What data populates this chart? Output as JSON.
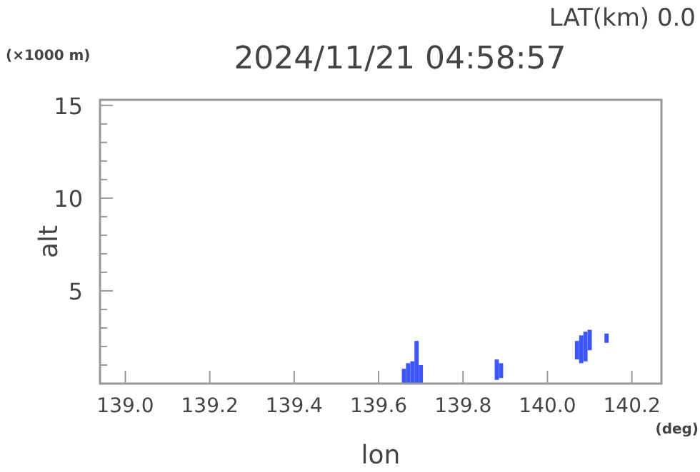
{
  "chart_data": {
    "type": "bar",
    "title": "2024/11/21 04:58:57",
    "subtitle": "LAT(km) 0.0",
    "xlabel": "lon",
    "ylabel": "alt",
    "annotations": [
      "(×1000 m)",
      "(deg)"
    ],
    "x": [
      139.66,
      139.67,
      139.68,
      139.69,
      139.7,
      139.88,
      139.89,
      140.07,
      140.08,
      140.09,
      140.1,
      140.14
    ],
    "base": [
      0,
      0,
      0,
      0,
      0,
      0.2,
      0.3,
      1.3,
      1.1,
      1.2,
      1.8,
      2.2
    ],
    "values": [
      0.8,
      1.1,
      1.2,
      2.3,
      1.0,
      1.1,
      0.8,
      1.0,
      1.5,
      1.6,
      1.1,
      0.5
    ],
    "color": "#3d55ff",
    "xlim": [
      138.94,
      140.27
    ],
    "xticks": [
      {
        "value": 139,
        "label": "139.0"
      },
      {
        "value": 139.2,
        "label": "139.2"
      },
      {
        "value": 139.4,
        "label": "139.4"
      },
      {
        "value": 139.6,
        "label": "139.6"
      },
      {
        "value": 139.8,
        "label": "139.8"
      },
      {
        "value": 140,
        "label": "140.0"
      },
      {
        "value": 140.2,
        "label": "140.2"
      }
    ],
    "ylim": [
      0,
      15.3
    ],
    "yticks": [
      {
        "value": 1,
        "label": null
      },
      {
        "value": 2,
        "label": null
      },
      {
        "value": 3,
        "label": null
      },
      {
        "value": 4,
        "label": null
      },
      5,
      {
        "value": 6,
        "label": null
      },
      {
        "value": 7,
        "label": null
      },
      {
        "value": 8,
        "label": null
      },
      {
        "value": 9,
        "label": null
      },
      10,
      {
        "value": 11,
        "label": null
      },
      {
        "value": 12,
        "label": null
      },
      {
        "value": 13,
        "label": null
      },
      {
        "value": 14,
        "label": null
      },
      15
    ],
    "grid": false
  }
}
